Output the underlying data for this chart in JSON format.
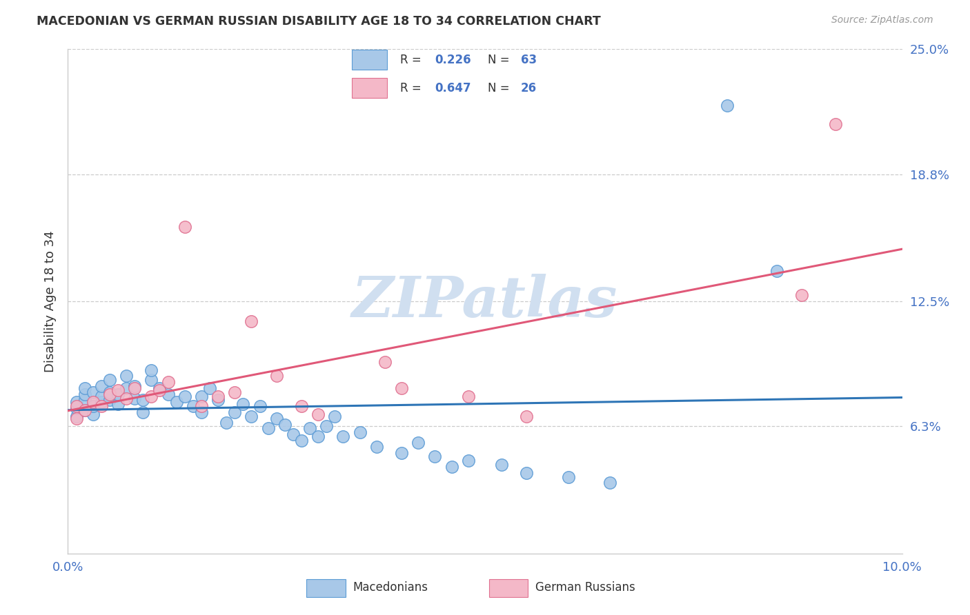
{
  "title": "MACEDONIAN VS GERMAN RUSSIAN DISABILITY AGE 18 TO 34 CORRELATION CHART",
  "source": "Source: ZipAtlas.com",
  "ylabel": "Disability Age 18 to 34",
  "xlim": [
    0.0,
    0.1
  ],
  "ylim": [
    0.0,
    0.25
  ],
  "yticks": [
    0.063,
    0.125,
    0.188,
    0.25
  ],
  "ytick_labels": [
    "6.3%",
    "12.5%",
    "18.8%",
    "25.0%"
  ],
  "xticks": [
    0.0,
    0.02,
    0.04,
    0.06,
    0.08,
    0.1
  ],
  "xtick_labels": [
    "0.0%",
    "",
    "",
    "",
    "",
    "10.0%"
  ],
  "macedonian_R": 0.226,
  "macedonian_N": 63,
  "german_russian_R": 0.647,
  "german_russian_N": 26,
  "macedonian_color": "#a8c8e8",
  "macedonian_edge_color": "#5b9bd5",
  "macedonian_line_color": "#2e75b6",
  "german_russian_color": "#f4b8c8",
  "german_russian_edge_color": "#e07090",
  "german_russian_line_color": "#e05878",
  "tick_color": "#4472c4",
  "watermark_color": "#d0dff0",
  "macedonian_x": [
    0.001,
    0.001,
    0.001,
    0.002,
    0.002,
    0.002,
    0.002,
    0.003,
    0.003,
    0.003,
    0.004,
    0.004,
    0.004,
    0.005,
    0.005,
    0.005,
    0.006,
    0.006,
    0.007,
    0.007,
    0.008,
    0.008,
    0.009,
    0.009,
    0.01,
    0.01,
    0.011,
    0.012,
    0.013,
    0.014,
    0.015,
    0.016,
    0.016,
    0.017,
    0.018,
    0.019,
    0.02,
    0.021,
    0.022,
    0.023,
    0.024,
    0.025,
    0.026,
    0.027,
    0.028,
    0.029,
    0.03,
    0.031,
    0.032,
    0.033,
    0.035,
    0.037,
    0.04,
    0.042,
    0.044,
    0.046,
    0.048,
    0.052,
    0.055,
    0.06,
    0.065,
    0.079,
    0.085
  ],
  "macedonian_y": [
    0.068,
    0.072,
    0.075,
    0.071,
    0.076,
    0.079,
    0.082,
    0.069,
    0.073,
    0.08,
    0.075,
    0.078,
    0.083,
    0.076,
    0.08,
    0.086,
    0.074,
    0.079,
    0.082,
    0.088,
    0.077,
    0.083,
    0.07,
    0.076,
    0.086,
    0.091,
    0.082,
    0.079,
    0.075,
    0.078,
    0.073,
    0.07,
    0.078,
    0.082,
    0.076,
    0.065,
    0.07,
    0.074,
    0.068,
    0.073,
    0.062,
    0.067,
    0.064,
    0.059,
    0.056,
    0.062,
    0.058,
    0.063,
    0.068,
    0.058,
    0.06,
    0.053,
    0.05,
    0.055,
    0.048,
    0.043,
    0.046,
    0.044,
    0.04,
    0.038,
    0.035,
    0.222,
    0.14
  ],
  "german_russian_x": [
    0.001,
    0.001,
    0.002,
    0.003,
    0.004,
    0.005,
    0.006,
    0.007,
    0.008,
    0.01,
    0.011,
    0.012,
    0.014,
    0.016,
    0.018,
    0.02,
    0.022,
    0.025,
    0.028,
    0.03,
    0.038,
    0.04,
    0.048,
    0.055,
    0.088,
    0.092
  ],
  "german_russian_y": [
    0.067,
    0.073,
    0.071,
    0.075,
    0.073,
    0.079,
    0.081,
    0.077,
    0.082,
    0.078,
    0.081,
    0.085,
    0.162,
    0.073,
    0.078,
    0.08,
    0.115,
    0.088,
    0.073,
    0.069,
    0.095,
    0.082,
    0.078,
    0.068,
    0.128,
    0.213
  ]
}
